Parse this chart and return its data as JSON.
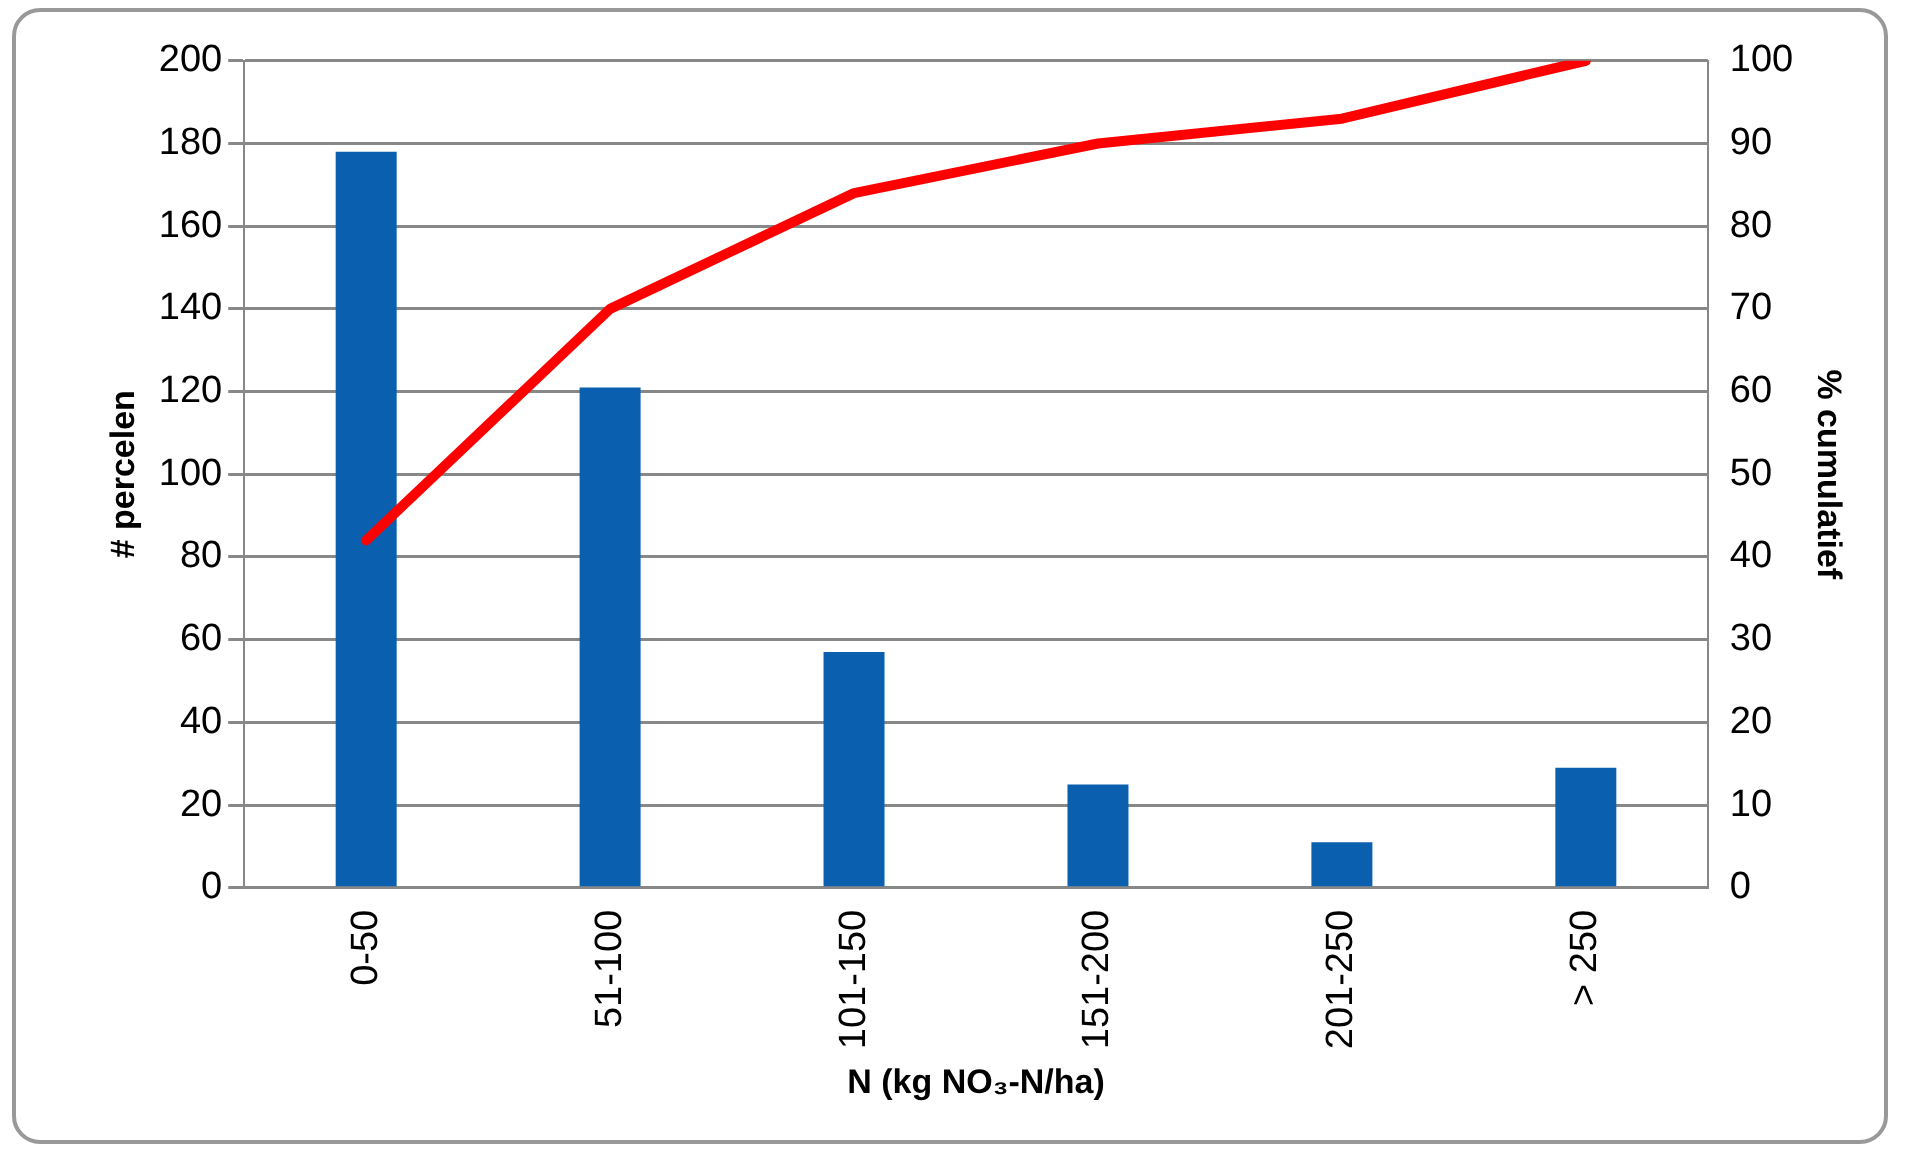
{
  "chart_data": {
    "type": "bar",
    "categories": [
      "0-50",
      "51-100",
      "101-150",
      "151-200",
      "201-250",
      "> 250"
    ],
    "series": [
      {
        "color": "#0a5fae",
        "values": [
          178,
          121,
          57,
          25,
          11,
          29
        ]
      },
      {
        "type": "line",
        "axis": "y2",
        "color": "#ff0000",
        "marker": "none",
        "values": [
          42,
          70,
          84,
          90,
          93,
          100
        ]
      }
    ],
    "xlabel": "N (kg NO₃-N/ha)",
    "ylabel": "# percelen",
    "y2label": "% cumulatief",
    "ylim": [
      0,
      200
    ],
    "yticks": [
      0,
      20,
      40,
      60,
      80,
      100,
      120,
      140,
      160,
      180,
      200
    ],
    "y2lim": [
      0,
      100
    ],
    "y2ticks": [
      0,
      10,
      20,
      30,
      40,
      50,
      60,
      70,
      80,
      90,
      100
    ],
    "grid": "y",
    "legend": false
  }
}
